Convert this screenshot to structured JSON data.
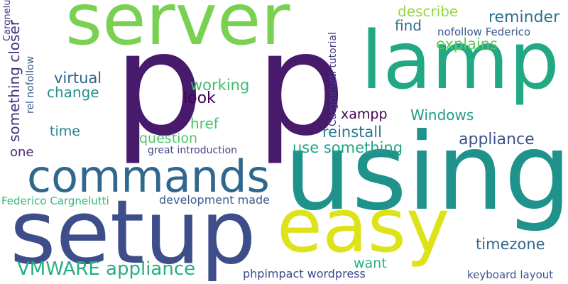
{
  "words": [
    {
      "id": "p1",
      "text": "p",
      "color": "#481a6c"
    },
    {
      "id": "p2",
      "text": "p",
      "color": "#481a6c"
    },
    {
      "id": "server",
      "text": "server",
      "color": "#7ad151"
    },
    {
      "id": "lamp",
      "text": "lamp",
      "color": "#22a884"
    },
    {
      "id": "using",
      "text": "using",
      "color": "#1f938b"
    },
    {
      "id": "setup",
      "text": "setup",
      "color": "#3d4e8a"
    },
    {
      "id": "easy",
      "text": "easy",
      "color": "#dde318"
    },
    {
      "id": "commands",
      "text": "commands",
      "color": "#30678d"
    },
    {
      "id": "vmware-appliance",
      "text": "VMWARE appliance",
      "color": "#27ad81"
    },
    {
      "id": "describe",
      "text": "describe",
      "color": "#93d741"
    },
    {
      "id": "reminder",
      "text": "reminder",
      "color": "#2c718e"
    },
    {
      "id": "find",
      "text": "find",
      "color": "#2d6f8e"
    },
    {
      "id": "nofollow-federico",
      "text": "nofollow Federico",
      "color": "#38588c"
    },
    {
      "id": "explains",
      "text": "explains",
      "color": "#5ec962"
    },
    {
      "id": "virtual",
      "text": "virtual",
      "color": "#33638d"
    },
    {
      "id": "working",
      "text": "working",
      "color": "#3fbc73"
    },
    {
      "id": "change",
      "text": "change",
      "color": "#21918c"
    },
    {
      "id": "look",
      "text": "look",
      "color": "#440154"
    },
    {
      "id": "time",
      "text": "time",
      "color": "#26828e"
    },
    {
      "id": "href",
      "text": "href",
      "color": "#4ac16d"
    },
    {
      "id": "question",
      "text": "question",
      "color": "#52c569"
    },
    {
      "id": "one",
      "text": "one",
      "color": "#482878"
    },
    {
      "id": "great-introduction",
      "text": "great introduction",
      "color": "#414487"
    },
    {
      "id": "xampp",
      "text": "xampp",
      "color": "#440154"
    },
    {
      "id": "windows",
      "text": "Windows",
      "color": "#1f9e89"
    },
    {
      "id": "reinstall",
      "text": "reinstall",
      "color": "#2a788e"
    },
    {
      "id": "appliance",
      "text": "appliance",
      "color": "#3b528b"
    },
    {
      "id": "use-something",
      "text": "use something",
      "color": "#20a486"
    },
    {
      "id": "federico-cargnelutti",
      "text": "Federico Cargnelutti",
      "color": "#35b779"
    },
    {
      "id": "development-made",
      "text": "development made",
      "color": "#355f8d"
    },
    {
      "id": "timezone",
      "text": "timezone",
      "color": "#31688e"
    },
    {
      "id": "want",
      "text": "want",
      "color": "#2ab07f"
    },
    {
      "id": "phpimpact-wordpress",
      "text": "phpimpact wordpress",
      "color": "#3e4a89"
    },
    {
      "id": "keyboard-layout",
      "text": "keyboard layout",
      "color": "#39568c"
    },
    {
      "id": "something-closer",
      "text": "something closer",
      "color": "#46327e"
    },
    {
      "id": "rel-nofollow",
      "text": "rel nofollow",
      "color": "#375a8c"
    },
    {
      "id": "cargnelutti-tutorial",
      "text": "Cargnelutti tutorial",
      "color": "#443983"
    },
    {
      "id": "cargnelutti",
      "text": "Cargnelutti",
      "color": "#453781"
    }
  ]
}
